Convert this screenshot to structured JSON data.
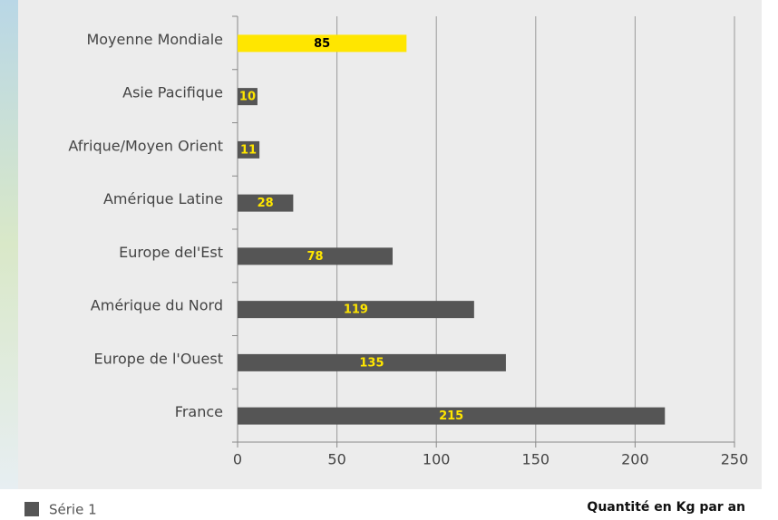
{
  "chart_data": {
    "type": "bar",
    "orientation": "horizontal",
    "categories": [
      "Moyenne Mondiale",
      "Asie Pacifique",
      "Afrique/Moyen Orient",
      "Amérique Latine",
      "Europe del'Est",
      "Amérique du Nord",
      "Europe de l'Ouest",
      "France"
    ],
    "series": [
      {
        "name": "Série 1",
        "color": "#555555",
        "values": [
          85,
          10,
          11,
          28,
          78,
          119,
          135,
          215
        ],
        "colors": [
          "#ffe600",
          "#555555",
          "#555555",
          "#555555",
          "#555555",
          "#555555",
          "#555555",
          "#555555"
        ],
        "label_colors": [
          "#000000",
          "#ffe600",
          "#ffe600",
          "#ffe600",
          "#ffe600",
          "#ffe600",
          "#ffe600",
          "#ffe600"
        ]
      }
    ],
    "xlim": [
      0,
      250
    ],
    "xticks": [
      0,
      50,
      100,
      150,
      200,
      250
    ],
    "grid": true,
    "x_label": "Quantité en Kg par an"
  }
}
